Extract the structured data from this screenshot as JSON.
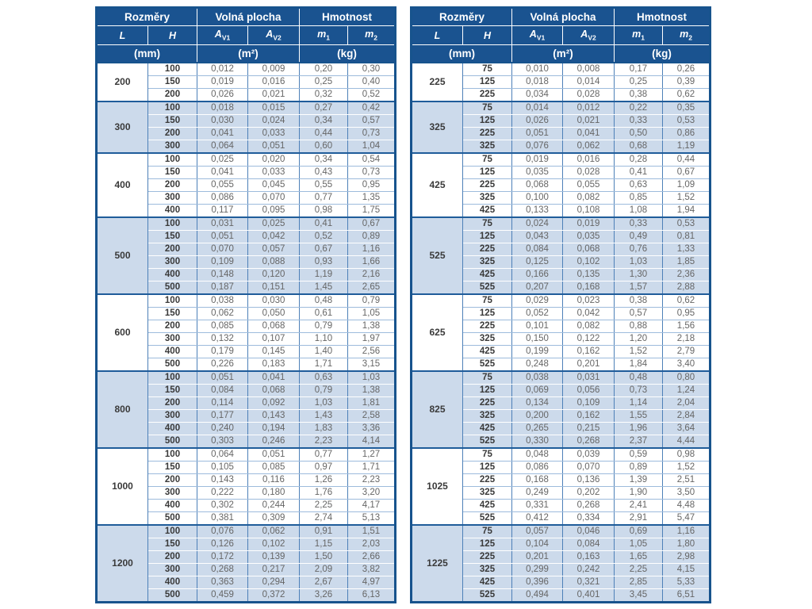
{
  "header": {
    "group_dimensions": "Rozměry",
    "group_free_area": "Volná plocha",
    "group_weight": "Hmotnost",
    "col_l": "L",
    "col_h": "H",
    "a_base": "A",
    "a_sub_v1": "V1",
    "a_sub_v2": "V2",
    "m_base": "m",
    "m_sub_1": "1",
    "m_sub_2": "2",
    "unit_mm": "(mm)",
    "unit_m2": "(m²)",
    "unit_kg": "(kg)"
  },
  "colors": {
    "header_bg": "#1a5390",
    "band_bg": "#ccdaeb",
    "border_outer": "#17538d",
    "border_vertical": "#4d80b8",
    "border_row_plain": "#9dbbdc",
    "border_group": "#1f5c9a",
    "text_values": "#666666",
    "text_bold": "#3a3a3a"
  },
  "tables": [
    {
      "name": "left",
      "groups": [
        {
          "L": "200",
          "rows": [
            [
              "100",
              "0,012",
              "0,009",
              "0,20",
              "0,30"
            ],
            [
              "150",
              "0,019",
              "0,016",
              "0,25",
              "0,40"
            ],
            [
              "200",
              "0,026",
              "0,021",
              "0,32",
              "0,52"
            ]
          ]
        },
        {
          "L": "300",
          "rows": [
            [
              "100",
              "0,018",
              "0,015",
              "0,27",
              "0,42"
            ],
            [
              "150",
              "0,030",
              "0,024",
              "0,34",
              "0,57"
            ],
            [
              "200",
              "0,041",
              "0,033",
              "0,44",
              "0,73"
            ],
            [
              "300",
              "0,064",
              "0,051",
              "0,60",
              "1,04"
            ]
          ]
        },
        {
          "L": "400",
          "rows": [
            [
              "100",
              "0,025",
              "0,020",
              "0,34",
              "0,54"
            ],
            [
              "150",
              "0,041",
              "0,033",
              "0,43",
              "0,73"
            ],
            [
              "200",
              "0,055",
              "0,045",
              "0,55",
              "0,95"
            ],
            [
              "300",
              "0,086",
              "0,070",
              "0,77",
              "1,35"
            ],
            [
              "400",
              "0,117",
              "0,095",
              "0,98",
              "1,75"
            ]
          ]
        },
        {
          "L": "500",
          "rows": [
            [
              "100",
              "0,031",
              "0,025",
              "0,41",
              "0,67"
            ],
            [
              "150",
              "0,051",
              "0,042",
              "0,52",
              "0,89"
            ],
            [
              "200",
              "0,070",
              "0,057",
              "0,67",
              "1,16"
            ],
            [
              "300",
              "0,109",
              "0,088",
              "0,93",
              "1,66"
            ],
            [
              "400",
              "0,148",
              "0,120",
              "1,19",
              "2,16"
            ],
            [
              "500",
              "0,187",
              "0,151",
              "1,45",
              "2,65"
            ]
          ]
        },
        {
          "L": "600",
          "rows": [
            [
              "100",
              "0,038",
              "0,030",
              "0,48",
              "0,79"
            ],
            [
              "150",
              "0,062",
              "0,050",
              "0,61",
              "1,05"
            ],
            [
              "200",
              "0,085",
              "0,068",
              "0,79",
              "1,38"
            ],
            [
              "300",
              "0,132",
              "0,107",
              "1,10",
              "1,97"
            ],
            [
              "400",
              "0,179",
              "0,145",
              "1,40",
              "2,56"
            ],
            [
              "500",
              "0,226",
              "0,183",
              "1,71",
              "3,15"
            ]
          ]
        },
        {
          "L": "800",
          "rows": [
            [
              "100",
              "0,051",
              "0,041",
              "0,63",
              "1,03"
            ],
            [
              "150",
              "0,084",
              "0,068",
              "0,79",
              "1,38"
            ],
            [
              "200",
              "0,114",
              "0,092",
              "1,03",
              "1,81"
            ],
            [
              "300",
              "0,177",
              "0,143",
              "1,43",
              "2,58"
            ],
            [
              "400",
              "0,240",
              "0,194",
              "1,83",
              "3,36"
            ],
            [
              "500",
              "0,303",
              "0,246",
              "2,23",
              "4,14"
            ]
          ]
        },
        {
          "L": "1000",
          "rows": [
            [
              "100",
              "0,064",
              "0,051",
              "0,77",
              "1,27"
            ],
            [
              "150",
              "0,105",
              "0,085",
              "0,97",
              "1,71"
            ],
            [
              "200",
              "0,143",
              "0,116",
              "1,26",
              "2,23"
            ],
            [
              "300",
              "0,222",
              "0,180",
              "1,76",
              "3,20"
            ],
            [
              "400",
              "0,302",
              "0,244",
              "2,25",
              "4,17"
            ],
            [
              "500",
              "0,381",
              "0,309",
              "2,74",
              "5,13"
            ]
          ]
        },
        {
          "L": "1200",
          "rows": [
            [
              "100",
              "0,076",
              "0,062",
              "0,91",
              "1,51"
            ],
            [
              "150",
              "0,126",
              "0,102",
              "1,15",
              "2,03"
            ],
            [
              "200",
              "0,172",
              "0,139",
              "1,50",
              "2,66"
            ],
            [
              "300",
              "0,268",
              "0,217",
              "2,09",
              "3,82"
            ],
            [
              "400",
              "0,363",
              "0,294",
              "2,67",
              "4,97"
            ],
            [
              "500",
              "0,459",
              "0,372",
              "3,26",
              "6,13"
            ]
          ]
        }
      ]
    },
    {
      "name": "right",
      "groups": [
        {
          "L": "225",
          "rows": [
            [
              "75",
              "0,010",
              "0,008",
              "0,17",
              "0,26"
            ],
            [
              "125",
              "0,018",
              "0,014",
              "0,25",
              "0,39"
            ],
            [
              "225",
              "0,034",
              "0,028",
              "0,38",
              "0,62"
            ]
          ]
        },
        {
          "L": "325",
          "rows": [
            [
              "75",
              "0,014",
              "0,012",
              "0,22",
              "0,35"
            ],
            [
              "125",
              "0,026",
              "0,021",
              "0,33",
              "0,53"
            ],
            [
              "225",
              "0,051",
              "0,041",
              "0,50",
              "0,86"
            ],
            [
              "325",
              "0,076",
              "0,062",
              "0,68",
              "1,19"
            ]
          ]
        },
        {
          "L": "425",
          "rows": [
            [
              "75",
              "0,019",
              "0,016",
              "0,28",
              "0,44"
            ],
            [
              "125",
              "0,035",
              "0,028",
              "0,41",
              "0,67"
            ],
            [
              "225",
              "0,068",
              "0,055",
              "0,63",
              "1,09"
            ],
            [
              "325",
              "0,100",
              "0,082",
              "0,85",
              "1,52"
            ],
            [
              "425",
              "0,133",
              "0,108",
              "1,08",
              "1,94"
            ]
          ]
        },
        {
          "L": "525",
          "rows": [
            [
              "75",
              "0,024",
              "0,019",
              "0,33",
              "0,53"
            ],
            [
              "125",
              "0,043",
              "0,035",
              "0,49",
              "0,81"
            ],
            [
              "225",
              "0,084",
              "0,068",
              "0,76",
              "1,33"
            ],
            [
              "325",
              "0,125",
              "0,102",
              "1,03",
              "1,85"
            ],
            [
              "425",
              "0,166",
              "0,135",
              "1,30",
              "2,36"
            ],
            [
              "525",
              "0,207",
              "0,168",
              "1,57",
              "2,88"
            ]
          ]
        },
        {
          "L": "625",
          "rows": [
            [
              "75",
              "0,029",
              "0,023",
              "0,38",
              "0,62"
            ],
            [
              "125",
              "0,052",
              "0,042",
              "0,57",
              "0,95"
            ],
            [
              "225",
              "0,101",
              "0,082",
              "0,88",
              "1,56"
            ],
            [
              "325",
              "0,150",
              "0,122",
              "1,20",
              "2,18"
            ],
            [
              "425",
              "0,199",
              "0,162",
              "1,52",
              "2,79"
            ],
            [
              "525",
              "0,248",
              "0,201",
              "1,84",
              "3,40"
            ]
          ]
        },
        {
          "L": "825",
          "rows": [
            [
              "75",
              "0,038",
              "0,031",
              "0,48",
              "0,80"
            ],
            [
              "125",
              "0,069",
              "0,056",
              "0,73",
              "1,24"
            ],
            [
              "225",
              "0,134",
              "0,109",
              "1,14",
              "2,04"
            ],
            [
              "325",
              "0,200",
              "0,162",
              "1,55",
              "2,84"
            ],
            [
              "425",
              "0,265",
              "0,215",
              "1,96",
              "3,64"
            ],
            [
              "525",
              "0,330",
              "0,268",
              "2,37",
              "4,44"
            ]
          ]
        },
        {
          "L": "1025",
          "rows": [
            [
              "75",
              "0,048",
              "0,039",
              "0,59",
              "0,98"
            ],
            [
              "125",
              "0,086",
              "0,070",
              "0,89",
              "1,52"
            ],
            [
              "225",
              "0,168",
              "0,136",
              "1,39",
              "2,51"
            ],
            [
              "325",
              "0,249",
              "0,202",
              "1,90",
              "3,50"
            ],
            [
              "425",
              "0,331",
              "0,268",
              "2,41",
              "4,48"
            ],
            [
              "525",
              "0,412",
              "0,334",
              "2,91",
              "5,47"
            ]
          ]
        },
        {
          "L": "1225",
          "rows": [
            [
              "75",
              "0,057",
              "0,046",
              "0,69",
              "1,16"
            ],
            [
              "125",
              "0,104",
              "0,084",
              "1,05",
              "1,80"
            ],
            [
              "225",
              "0,201",
              "0,163",
              "1,65",
              "2,98"
            ],
            [
              "325",
              "0,299",
              "0,242",
              "2,25",
              "4,15"
            ],
            [
              "425",
              "0,396",
              "0,321",
              "2,85",
              "5,33"
            ],
            [
              "525",
              "0,494",
              "0,401",
              "3,45",
              "6,51"
            ]
          ]
        }
      ]
    }
  ]
}
